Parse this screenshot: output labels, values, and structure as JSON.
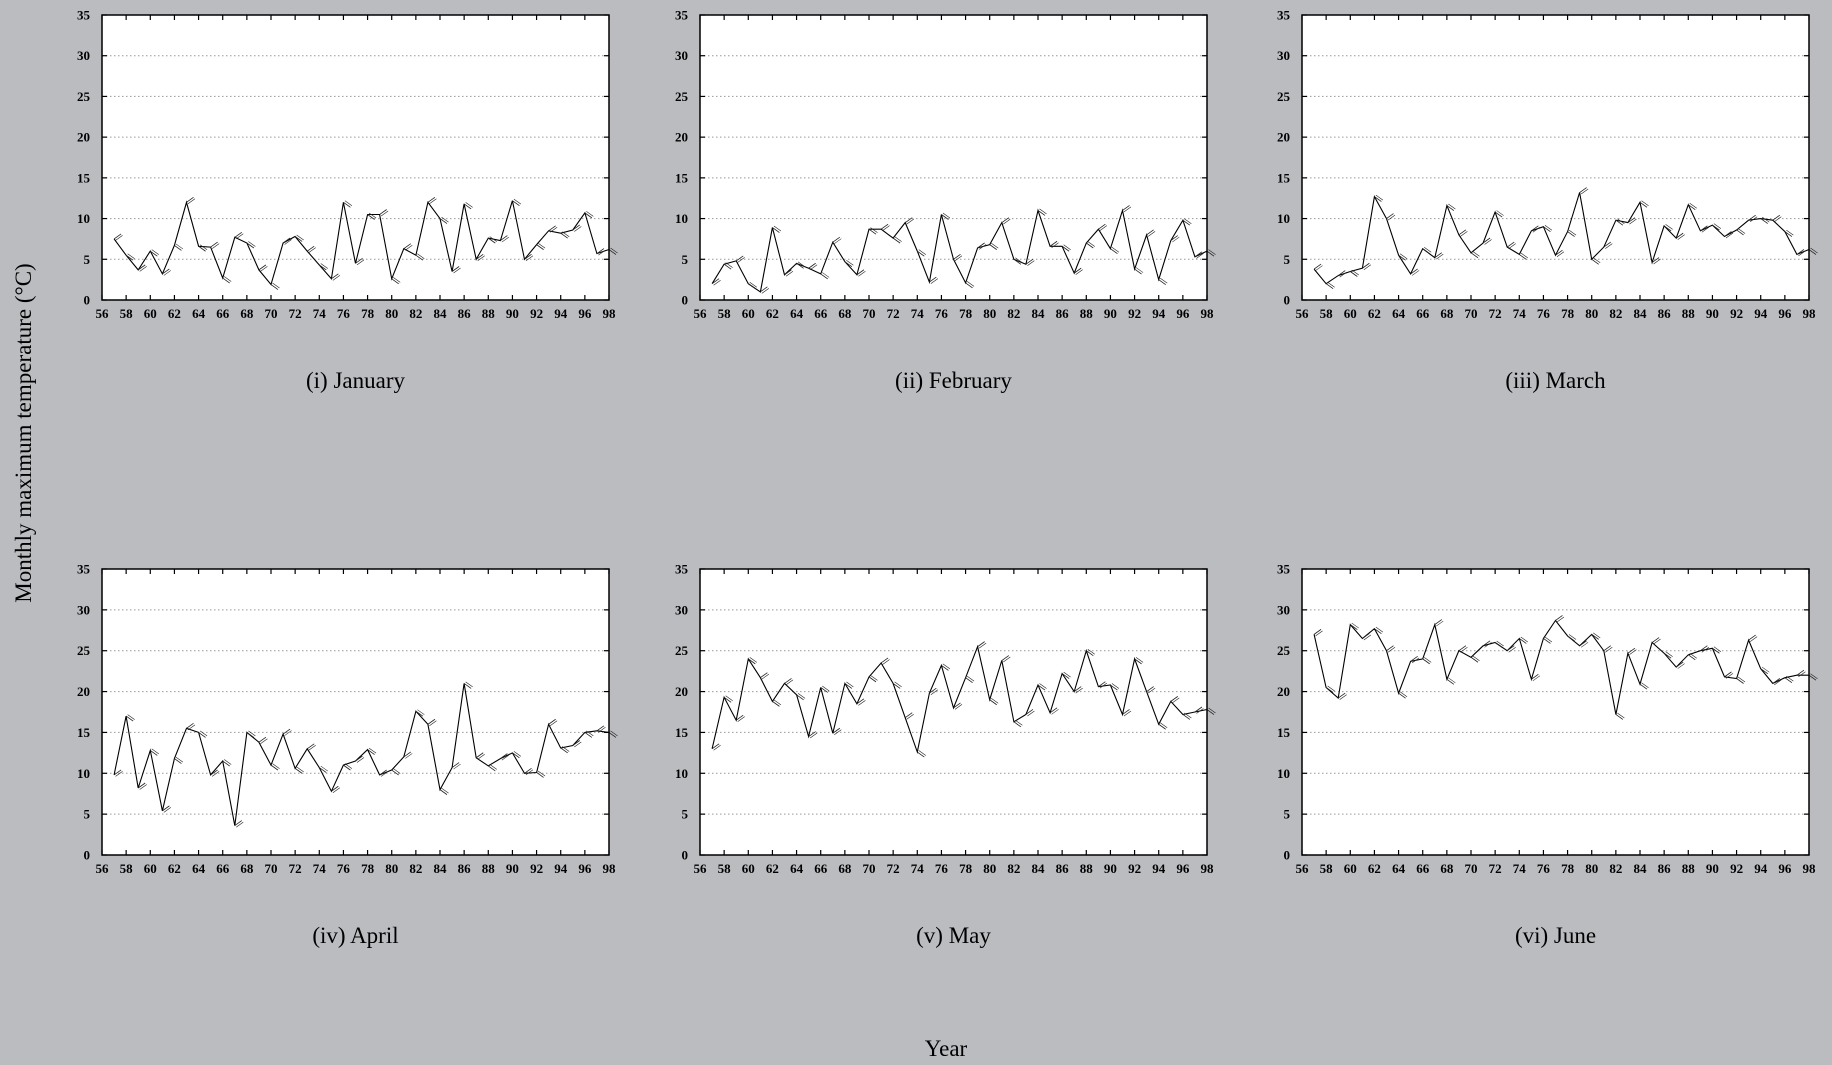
{
  "figure": {
    "ylabel": "Monthly maximum temperature (°C)",
    "xlabel": "Year",
    "colors": {
      "background": "#bbbcc0",
      "plot_bg": "#ffffff",
      "line": "#000000",
      "grid": "#999999"
    }
  },
  "chart_data": [
    {
      "type": "line",
      "title": "(i) January",
      "xlim": [
        56,
        98
      ],
      "ylim": [
        0,
        35
      ],
      "xticks": [
        56,
        58,
        60,
        62,
        64,
        66,
        68,
        70,
        72,
        74,
        76,
        78,
        80,
        82,
        84,
        86,
        88,
        90,
        92,
        94,
        96,
        98
      ],
      "yticks": [
        0,
        5,
        10,
        15,
        20,
        25,
        30,
        35
      ],
      "grid": "horizontal dotted",
      "x": [
        57,
        58,
        59,
        60,
        61,
        62,
        63,
        64,
        65,
        66,
        67,
        68,
        69,
        70,
        71,
        72,
        73,
        74,
        75,
        76,
        77,
        78,
        79,
        80,
        81,
        82,
        83,
        84,
        85,
        86,
        87,
        88,
        89,
        90,
        91,
        92,
        93,
        94,
        95,
        96,
        97,
        98
      ],
      "values": [
        7.5,
        5.5,
        3.7,
        6,
        3.2,
        6.7,
        12,
        6.6,
        6.5,
        2.7,
        7.7,
        7,
        3.7,
        1.9,
        7,
        7.8,
        6,
        4.3,
        2.6,
        12,
        4.5,
        10.5,
        10.5,
        2.6,
        6.3,
        5.5,
        12,
        10,
        3.5,
        11.8,
        5,
        7.6,
        7.3,
        12.2,
        5,
        6.8,
        8.5,
        8.2,
        8.6,
        10.7,
        5.7,
        6.2
      ]
    },
    {
      "type": "line",
      "title": "(ii) February",
      "xlim": [
        56,
        98
      ],
      "ylim": [
        0,
        35
      ],
      "xticks": [
        56,
        58,
        60,
        62,
        64,
        66,
        68,
        70,
        72,
        74,
        76,
        78,
        80,
        82,
        84,
        86,
        88,
        90,
        92,
        94,
        96,
        98
      ],
      "yticks": [
        0,
        5,
        10,
        15,
        20,
        25,
        30,
        35
      ],
      "grid": "horizontal dotted",
      "x": [
        57,
        58,
        59,
        60,
        61,
        62,
        63,
        64,
        65,
        66,
        67,
        68,
        69,
        70,
        71,
        72,
        73,
        74,
        75,
        76,
        77,
        78,
        79,
        80,
        81,
        82,
        83,
        84,
        85,
        86,
        87,
        88,
        89,
        90,
        91,
        92,
        93,
        94,
        95,
        96,
        97,
        98
      ],
      "values": [
        2,
        4.4,
        4.8,
        2,
        1,
        8.9,
        3.1,
        4.5,
        3.9,
        3.2,
        7.1,
        4.7,
        3.1,
        8.7,
        8.7,
        7.6,
        9.5,
        6,
        2.2,
        10.5,
        5,
        2.1,
        6.4,
        6.8,
        9.5,
        5,
        4.4,
        11,
        6.6,
        6.6,
        3.3,
        7,
        8.7,
        6.3,
        11,
        3.8,
        8,
        2.5,
        7.3,
        9.8,
        5.3,
        6
      ]
    },
    {
      "type": "line",
      "title": "(iii) March",
      "xlim": [
        56,
        98
      ],
      "ylim": [
        0,
        35
      ],
      "xticks": [
        56,
        58,
        60,
        62,
        64,
        66,
        68,
        70,
        72,
        74,
        76,
        78,
        80,
        82,
        84,
        86,
        88,
        90,
        92,
        94,
        96,
        98
      ],
      "yticks": [
        0,
        5,
        10,
        15,
        20,
        25,
        30,
        35
      ],
      "grid": "horizontal dotted",
      "x": [
        57,
        58,
        59,
        60,
        61,
        62,
        63,
        64,
        65,
        66,
        67,
        68,
        69,
        70,
        71,
        72,
        73,
        74,
        75,
        76,
        77,
        78,
        79,
        80,
        81,
        82,
        83,
        84,
        85,
        86,
        87,
        88,
        89,
        90,
        91,
        92,
        93,
        94,
        95,
        96,
        97,
        98
      ],
      "values": [
        3.8,
        2,
        3,
        3.5,
        3.9,
        12.7,
        10,
        5.5,
        3.2,
        6.3,
        5.2,
        11.6,
        8,
        5.8,
        7,
        10.8,
        6.5,
        5.6,
        8.5,
        9,
        5.5,
        8.4,
        13.2,
        5,
        6.5,
        9.8,
        9.5,
        12,
        4.6,
        9.1,
        7.6,
        11.7,
        8.5,
        9.2,
        7.8,
        8.6,
        9.8,
        10,
        9.8,
        8.4,
        5.6,
        6.2
      ]
    },
    {
      "type": "line",
      "title": "(iv) April",
      "xlim": [
        56,
        98
      ],
      "ylim": [
        0,
        35
      ],
      "xticks": [
        56,
        58,
        60,
        62,
        64,
        66,
        68,
        70,
        72,
        74,
        76,
        78,
        80,
        82,
        84,
        86,
        88,
        90,
        92,
        94,
        96,
        98
      ],
      "yticks": [
        0,
        5,
        10,
        15,
        20,
        25,
        30,
        35
      ],
      "grid": "horizontal dotted",
      "x": [
        57,
        58,
        59,
        60,
        61,
        62,
        63,
        64,
        65,
        66,
        67,
        68,
        69,
        70,
        71,
        72,
        73,
        74,
        75,
        76,
        77,
        78,
        79,
        80,
        81,
        82,
        83,
        84,
        85,
        86,
        87,
        88,
        89,
        90,
        91,
        92,
        93,
        94,
        95,
        96,
        97,
        98
      ],
      "values": [
        9.8,
        17,
        8.2,
        12.8,
        5.4,
        11.8,
        15.5,
        15,
        9.8,
        11.5,
        3.6,
        15,
        13.8,
        11,
        14.8,
        10.6,
        13,
        10.7,
        7.8,
        11,
        11.5,
        12.9,
        9.8,
        10.4,
        12,
        17.6,
        16,
        8,
        10.7,
        21,
        11.9,
        10.9,
        11.8,
        12.5,
        10,
        10.1,
        16,
        13.1,
        13.4,
        15,
        15.2,
        15
      ]
    },
    {
      "type": "line",
      "title": "(v) May",
      "xlim": [
        56,
        98
      ],
      "ylim": [
        0,
        35
      ],
      "xticks": [
        56,
        58,
        60,
        62,
        64,
        66,
        68,
        70,
        72,
        74,
        76,
        78,
        80,
        82,
        84,
        86,
        88,
        90,
        92,
        94,
        96,
        98
      ],
      "yticks": [
        0,
        5,
        10,
        15,
        20,
        25,
        30,
        35
      ],
      "grid": "horizontal dotted",
      "x": [
        57,
        58,
        59,
        60,
        61,
        62,
        63,
        64,
        65,
        66,
        67,
        68,
        69,
        70,
        71,
        72,
        73,
        74,
        75,
        76,
        77,
        78,
        79,
        80,
        81,
        82,
        83,
        84,
        85,
        86,
        87,
        88,
        89,
        90,
        91,
        92,
        93,
        94,
        95,
        96,
        97,
        98
      ],
      "values": [
        13,
        19.3,
        16.5,
        24,
        21.7,
        18.8,
        21,
        19.6,
        14.5,
        20.5,
        14.9,
        21,
        18.5,
        21.8,
        23.5,
        21,
        16.8,
        12.6,
        19.8,
        23.2,
        18,
        21.7,
        25.5,
        19,
        23.8,
        16.3,
        17.2,
        20.8,
        17.4,
        22.2,
        20,
        25,
        20.6,
        20.8,
        17.2,
        24,
        20,
        16,
        18.8,
        17.2,
        17.5,
        17.8
      ]
    },
    {
      "type": "line",
      "title": "(vi) June",
      "xlim": [
        56,
        98
      ],
      "ylim": [
        0,
        35
      ],
      "xticks": [
        56,
        58,
        60,
        62,
        64,
        66,
        68,
        70,
        72,
        74,
        76,
        78,
        80,
        82,
        84,
        86,
        88,
        90,
        92,
        94,
        96,
        98
      ],
      "yticks": [
        0,
        5,
        10,
        15,
        20,
        25,
        30,
        35
      ],
      "grid": "horizontal dotted",
      "x": [
        57,
        58,
        59,
        60,
        61,
        62,
        63,
        64,
        65,
        66,
        67,
        68,
        69,
        70,
        71,
        72,
        73,
        74,
        75,
        76,
        77,
        78,
        79,
        80,
        81,
        82,
        83,
        84,
        85,
        86,
        87,
        88,
        89,
        90,
        91,
        92,
        93,
        94,
        95,
        96,
        97,
        98
      ],
      "values": [
        27,
        20.5,
        19.2,
        28.2,
        26.5,
        27.7,
        25,
        19.8,
        23.7,
        24,
        28.2,
        21.5,
        25,
        24.2,
        25.6,
        26,
        25,
        26.5,
        21.5,
        26.5,
        28.7,
        26.8,
        25.6,
        27,
        25,
        17.2,
        24.7,
        20.9,
        26,
        24.7,
        23,
        24.5,
        25,
        25.3,
        21.8,
        21.6,
        26.3,
        22.8,
        21,
        21.7,
        22,
        22
      ]
    }
  ]
}
